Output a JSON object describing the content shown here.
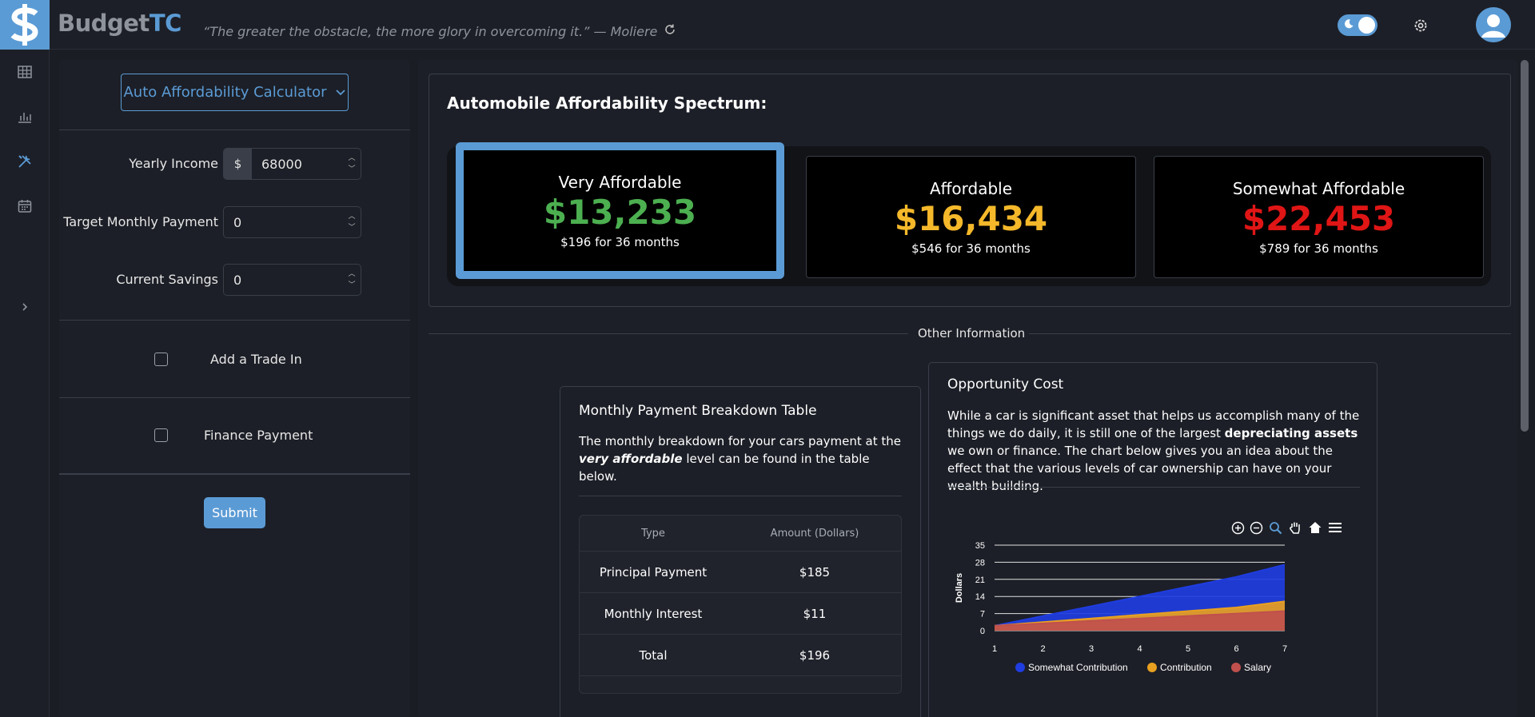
{
  "brand": {
    "part1": "Budget",
    "part2": "TC"
  },
  "quote": "“The greater the obstacle, the more glory in overcoming it.” — Moliere",
  "icons": {
    "logo": "dollar-sign-icon",
    "refresh": "refresh-icon",
    "theme": "moon-icon",
    "settings": "gear-icon",
    "avatar": "user-icon",
    "rail": [
      "table-icon",
      "bar-chart-icon",
      "tools-icon",
      "calendar-icon",
      "chevron-right-icon"
    ]
  },
  "colors": {
    "accent": "#5b9bd5",
    "very_affordable": "#4caf50",
    "affordable": "#f4b82a",
    "somewhat_affordable": "#e01515"
  },
  "calculator": {
    "selector_label": "Auto Affordability Calculator",
    "fields": [
      {
        "label": "Yearly Income",
        "prefix": "$",
        "value": "68000"
      },
      {
        "label": "Target Monthly Payment",
        "value": "0"
      },
      {
        "label": "Current Savings",
        "value": "0"
      }
    ],
    "checkboxes": [
      {
        "label": "Add a Trade In",
        "checked": false
      },
      {
        "label": "Finance Payment",
        "checked": false
      }
    ],
    "submit_label": "Submit"
  },
  "spectrum": {
    "title": "Automobile Affordability Spectrum:",
    "tiers": [
      {
        "name": "Very Affordable",
        "price": "$13,233",
        "sub": "$196 for 36 months",
        "selected": true
      },
      {
        "name": "Affordable",
        "price": "$16,434",
        "sub": "$546 for 36 months",
        "selected": false
      },
      {
        "name": "Somewhat Affordable",
        "price": "$22,453",
        "sub": "$789 for 36 months",
        "selected": false
      }
    ]
  },
  "other_info_label": "Other Information",
  "breakdown": {
    "title": "Monthly Payment Breakdown Table",
    "text_1": "The monthly breakdown for your cars payment at the",
    "text_em": "very affordable",
    "text_2": " level can be found in the table below.",
    "headers": [
      "Type",
      "Amount (Dollars)"
    ],
    "rows": [
      [
        "Principal Payment",
        "$185"
      ],
      [
        "Monthly Interest",
        "$11"
      ],
      [
        "Total",
        "$196"
      ]
    ]
  },
  "opportunity": {
    "title": "Opportunity Cost",
    "text_1": "While a car is significant asset that helps us accomplish many of the things we do daily, it is still one of the largest ",
    "text_bold": "depreciating assets",
    "text_2": " we own or finance. The chart below gives you an idea about the effect that the various levels of car ownership can have on your wealth building.",
    "toolbar": [
      "zoom-in-icon",
      "zoom-out-icon",
      "zoom-select-icon",
      "pan-hand-icon",
      "home-icon",
      "menu-icon"
    ]
  },
  "chart_data": {
    "type": "area",
    "x": [
      1,
      2,
      3,
      4,
      5,
      6,
      7
    ],
    "ylabel": "Dollars",
    "xlabel": "",
    "ylim": [
      0,
      35
    ],
    "yticks": [
      0,
      7,
      14,
      21,
      28,
      35
    ],
    "grid": true,
    "legend_position": "bottom",
    "series": [
      {
        "name": "Somewhat Contribution",
        "color": "#1f3de0",
        "values": [
          2,
          6,
          10,
          14,
          18,
          22,
          27
        ]
      },
      {
        "name": "Contribution",
        "color": "#e8a020",
        "values": [
          2,
          3.5,
          5,
          6.5,
          8,
          9.5,
          12
        ]
      },
      {
        "name": "Salary",
        "color": "#c0504d",
        "values": [
          2,
          3,
          4,
          5,
          6,
          7,
          8
        ]
      }
    ]
  }
}
